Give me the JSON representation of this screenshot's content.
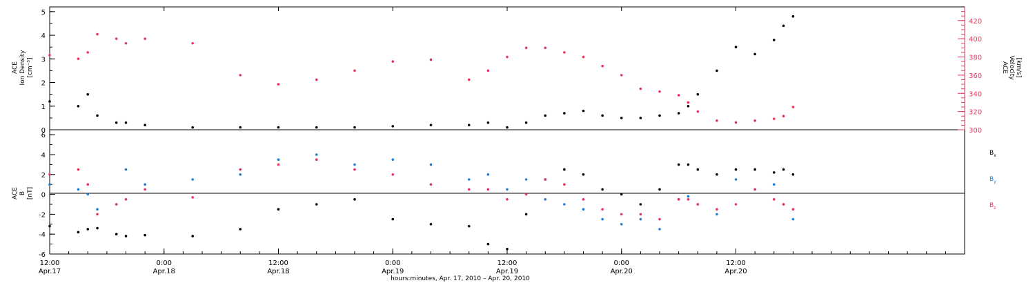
{
  "chart_data": [
    {
      "type": "scatter",
      "panel": "top",
      "title": "",
      "ylabel_left": [
        "ACE",
        "Ion Density",
        "[cm⁻³]"
      ],
      "ylabel_right": [
        "ACE",
        "Velocity",
        "[km/s]"
      ],
      "ylim_left": [
        0,
        5.2
      ],
      "ylim_right": [
        300,
        435
      ],
      "left_ticks": [
        "0",
        "1",
        "2",
        "3",
        "4",
        "5"
      ],
      "right_ticks": [
        "300",
        "320",
        "340",
        "360",
        "380",
        "400",
        "420"
      ],
      "series": [
        {
          "name": "Ion Density",
          "axis": "left",
          "color": "#000000",
          "x": [
            0,
            3,
            4,
            5,
            7,
            8,
            10,
            15,
            20,
            24,
            28,
            32,
            36,
            40,
            44,
            46,
            48,
            50,
            52,
            54,
            56,
            58,
            60,
            62,
            64,
            66,
            67,
            68,
            70,
            72,
            74,
            76,
            77,
            78
          ],
          "y": [
            1.2,
            1.0,
            1.5,
            0.6,
            0.3,
            0.3,
            0.2,
            0.1,
            0.1,
            0.1,
            0.1,
            0.1,
            0.15,
            0.2,
            0.2,
            0.3,
            0.1,
            0.3,
            0.6,
            0.7,
            0.8,
            0.6,
            0.5,
            0.5,
            0.6,
            0.7,
            1.0,
            1.5,
            2.5,
            3.5,
            3.2,
            3.8,
            4.4,
            4.8
          ]
        },
        {
          "name": "Velocity",
          "axis": "right",
          "color": "#e8345a",
          "x": [
            0,
            3,
            4,
            5,
            7,
            8,
            10,
            15,
            20,
            24,
            28,
            32,
            36,
            40,
            44,
            46,
            48,
            50,
            52,
            54,
            56,
            58,
            60,
            62,
            64,
            66,
            67,
            68,
            70,
            72,
            74,
            76,
            77,
            78
          ],
          "y": [
            382,
            378,
            385,
            405,
            400,
            395,
            400,
            395,
            360,
            350,
            355,
            365,
            375,
            377,
            355,
            365,
            380,
            390,
            390,
            385,
            380,
            370,
            360,
            345,
            342,
            338,
            330,
            320,
            310,
            308,
            310,
            312,
            315,
            325
          ]
        }
      ]
    },
    {
      "type": "scatter",
      "panel": "bottom",
      "title": "",
      "ylabel_left": [
        "ACE",
        "B",
        "[nT]"
      ],
      "ylim": [
        -6,
        6.5
      ],
      "left_ticks": [
        "-6",
        "-4",
        "-2",
        "0",
        "2",
        "4",
        "6"
      ],
      "legend": [
        {
          "label": "B",
          "sub": "x",
          "color": "#000000"
        },
        {
          "label": "B",
          "sub": "y",
          "color": "#1f7fd6"
        },
        {
          "label": "B",
          "sub": "z",
          "color": "#e8345a"
        }
      ],
      "series": [
        {
          "name": "Bx",
          "color": "#000000",
          "x": [
            0,
            3,
            4,
            5,
            7,
            8,
            10,
            15,
            20,
            24,
            28,
            32,
            36,
            40,
            44,
            46,
            48,
            50,
            52,
            54,
            56,
            58,
            60,
            62,
            64,
            66,
            67,
            68,
            70,
            72,
            74,
            76,
            77,
            78
          ],
          "y": [
            -3.2,
            -3.8,
            -3.5,
            -3.4,
            -4.0,
            -4.2,
            -4.1,
            -4.2,
            -3.5,
            -1.5,
            -1.0,
            -0.5,
            -2.5,
            -3.0,
            -3.2,
            -5.0,
            -5.5,
            -2.0,
            1.5,
            2.5,
            2.0,
            0.5,
            0.0,
            -1.0,
            0.5,
            3.0,
            3.0,
            2.5,
            2.0,
            2.5,
            2.5,
            2.2,
            2.5,
            2.0
          ]
        },
        {
          "name": "By",
          "color": "#1f7fd6",
          "x": [
            0,
            3,
            4,
            5,
            7,
            8,
            10,
            15,
            20,
            24,
            28,
            32,
            36,
            40,
            44,
            46,
            48,
            50,
            52,
            54,
            56,
            58,
            60,
            62,
            64,
            66,
            67,
            68,
            70,
            72,
            74,
            76,
            77,
            78
          ],
          "y": [
            1.0,
            0.5,
            0.0,
            -1.5,
            -1.0,
            2.5,
            1.0,
            1.5,
            2.0,
            3.5,
            4.0,
            3.0,
            3.5,
            3.0,
            1.5,
            2.0,
            0.5,
            1.5,
            -0.5,
            -1.0,
            -1.5,
            -2.5,
            -3.0,
            -2.5,
            -3.5,
            -0.5,
            -0.2,
            -1.0,
            -2.0,
            1.5,
            0.5,
            1.0,
            -1.0,
            -2.5
          ]
        },
        {
          "name": "Bz",
          "color": "#e8345a",
          "x": [
            0,
            3,
            4,
            5,
            7,
            8,
            10,
            15,
            20,
            24,
            28,
            32,
            36,
            40,
            44,
            46,
            48,
            50,
            52,
            54,
            56,
            58,
            60,
            62,
            64,
            66,
            67,
            68,
            70,
            72,
            74,
            76,
            77,
            78
          ],
          "y": [
            2.0,
            2.5,
            1.0,
            -2.0,
            -1.0,
            -0.5,
            0.5,
            -0.3,
            2.5,
            3.0,
            3.5,
            2.5,
            2.0,
            1.0,
            0.5,
            0.5,
            -0.5,
            0.0,
            1.5,
            1.0,
            -0.5,
            -1.5,
            -2.0,
            -2.0,
            -2.5,
            -0.5,
            -0.5,
            -1.0,
            -1.5,
            -1.0,
            0.5,
            -0.5,
            -1.0,
            -1.5
          ]
        }
      ]
    }
  ],
  "x_axis": {
    "xlim": [
      0,
      96
    ],
    "ticks": [
      {
        "x": 0,
        "time": "12:00",
        "date": "Apr.17"
      },
      {
        "x": 12,
        "time": "0:00",
        "date": "Apr.18"
      },
      {
        "x": 24,
        "time": "12:00",
        "date": "Apr.18"
      },
      {
        "x": 36,
        "time": "0:00",
        "date": "Apr.19"
      },
      {
        "x": 48,
        "time": "12:00",
        "date": "Apr.19"
      },
      {
        "x": 60,
        "time": "0:00",
        "date": "Apr.20"
      },
      {
        "x": 72,
        "time": "12:00",
        "date": "Apr.20"
      }
    ],
    "xlabel": "hours:minutes, Apr. 17, 2010 – Apr. 20, 2010"
  },
  "colors": {
    "black": "#000000",
    "pink": "#e8345a",
    "blue": "#1f7fd6"
  }
}
